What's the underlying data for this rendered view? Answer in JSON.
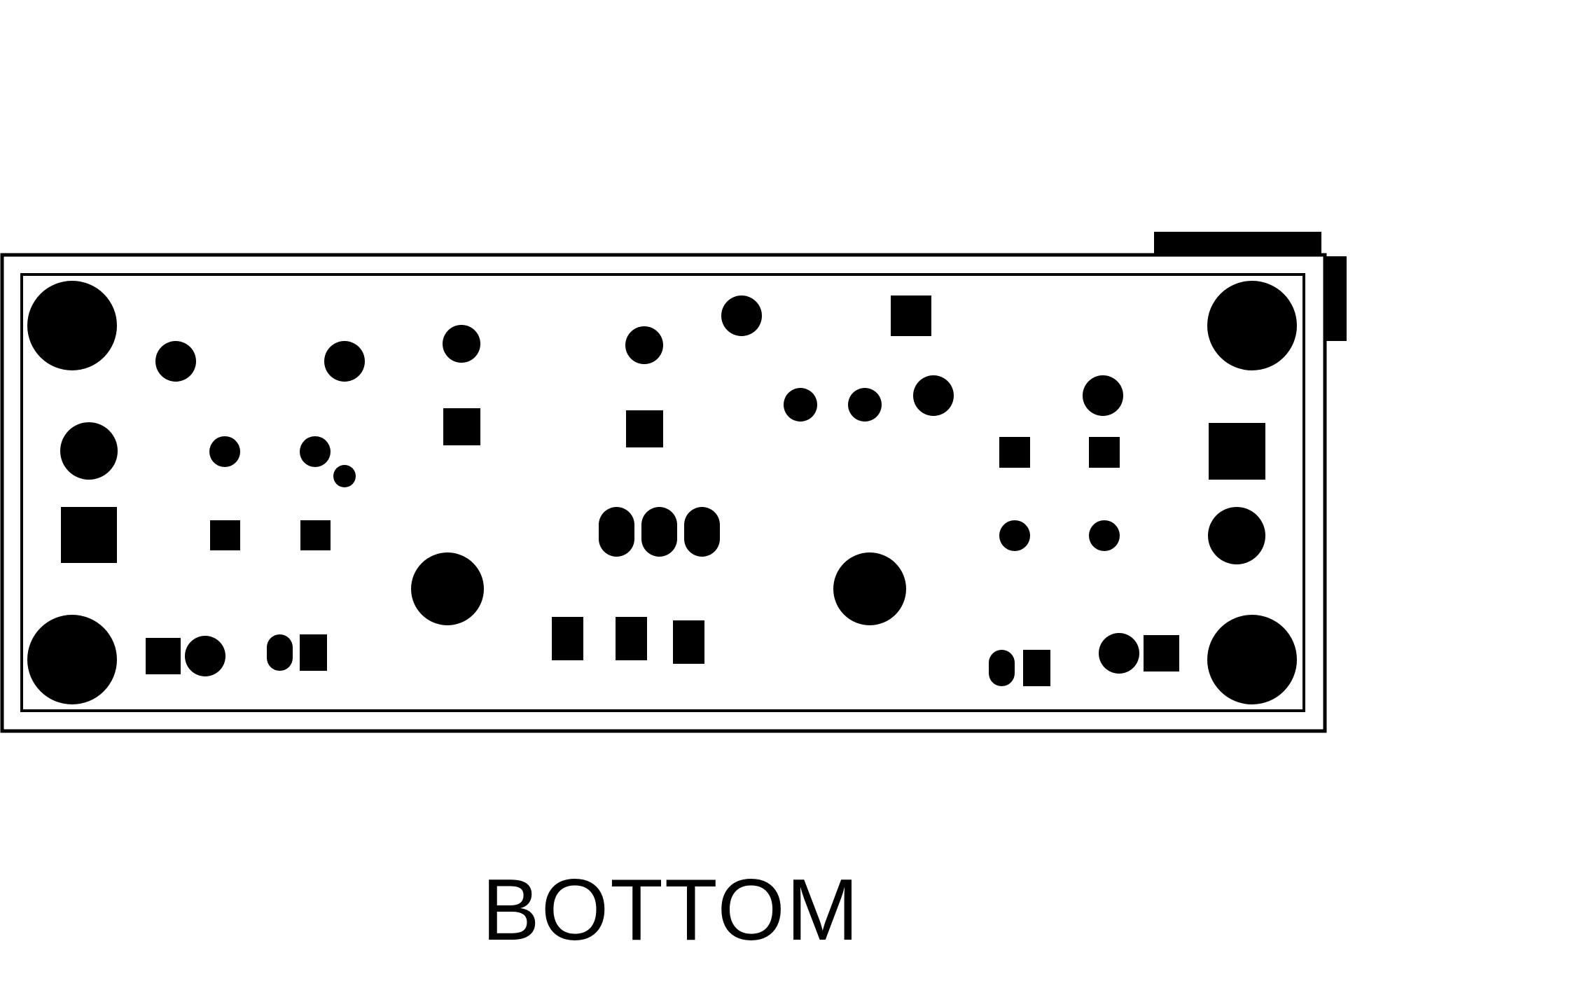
{
  "diagram": {
    "type": "pcb-layout",
    "side_label": "BOTTOM",
    "colors": {
      "background": "#ffffff",
      "ink": "#000000"
    }
  }
}
